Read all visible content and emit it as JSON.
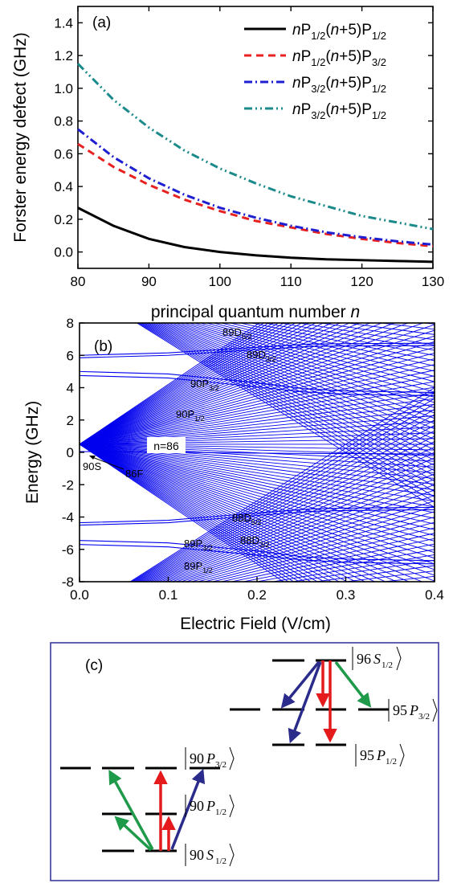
{
  "chart_data": [
    {
      "panel_label": "(a)",
      "type": "line",
      "xlabel_main": "principal quantum number ",
      "xlabel_italic": "n",
      "ylabel": "Forster energy defect (GHz)",
      "xlim": [
        80,
        130
      ],
      "ylim": [
        -0.1,
        1.5
      ],
      "xticks": [
        80,
        90,
        100,
        110,
        120,
        130
      ],
      "yticks": [
        0.0,
        0.2,
        0.4,
        0.6,
        0.8,
        1.0,
        1.2,
        1.4
      ],
      "ytick_labels": [
        "0.0",
        "0.2",
        "0.4",
        "0.6",
        "0.8",
        "1.0",
        "1.2",
        "1.4"
      ],
      "legend_position": "top-right",
      "grid": false,
      "series": [
        {
          "legend": {
            "a": "n",
            "b": "P",
            "c": "1/2",
            "d": "(",
            "e": "n",
            "f": "+5)P",
            "g": "1/2"
          },
          "color": "#000000",
          "dash": "solid",
          "x": [
            80,
            85,
            90,
            95,
            100,
            105,
            110,
            115,
            120,
            125,
            130
          ],
          "y": [
            0.27,
            0.16,
            0.08,
            0.03,
            0.0,
            -0.02,
            -0.035,
            -0.045,
            -0.05,
            -0.055,
            -0.06
          ]
        },
        {
          "legend": {
            "a": "n",
            "b": "P",
            "c": "1/2",
            "d": "(",
            "e": "n",
            "f": "+5)P",
            "g": "3/2"
          },
          "color": "#e8201f",
          "dash": "dash",
          "x": [
            80,
            85,
            90,
            95,
            100,
            105,
            110,
            115,
            120,
            125,
            130
          ],
          "y": [
            0.66,
            0.52,
            0.41,
            0.32,
            0.25,
            0.19,
            0.15,
            0.11,
            0.08,
            0.055,
            0.035
          ]
        },
        {
          "legend": {
            "a": "n",
            "b": "P",
            "c": "3/2",
            "d": "(",
            "e": "n",
            "f": "+5)P",
            "g": "1/2"
          },
          "color": "#1f1fd2",
          "dash": "dashdot",
          "x": [
            80,
            85,
            90,
            95,
            100,
            105,
            110,
            115,
            120,
            125,
            130
          ],
          "y": [
            0.75,
            0.58,
            0.45,
            0.35,
            0.27,
            0.21,
            0.16,
            0.12,
            0.09,
            0.065,
            0.045
          ]
        },
        {
          "legend": {
            "a": "n",
            "b": "P",
            "c": "3/2",
            "d": "(",
            "e": "n",
            "f": "+5)P",
            "g": "1/2"
          },
          "color": "#1a8a8a",
          "dash": "dashdotdot",
          "x": [
            80,
            85,
            90,
            95,
            100,
            105,
            110,
            115,
            120,
            125,
            130
          ],
          "y": [
            1.15,
            0.93,
            0.76,
            0.62,
            0.51,
            0.42,
            0.34,
            0.28,
            0.22,
            0.18,
            0.14
          ]
        }
      ]
    },
    {
      "panel_label": "(b)",
      "type": "line",
      "xlabel": "Electric Field (V/cm)",
      "ylabel": "Energy (GHz)",
      "xlim": [
        0.0,
        0.4
      ],
      "ylim": [
        -8,
        8
      ],
      "xticks": [
        0.0,
        0.1,
        0.2,
        0.3,
        0.4
      ],
      "xtick_labels": [
        "0.0",
        "0.1",
        "0.2",
        "0.3",
        "0.4"
      ],
      "yticks": [
        -8,
        -6,
        -4,
        -2,
        0,
        2,
        4,
        6,
        8
      ],
      "ytick_labels": [
        "-8",
        "-6",
        "-4",
        "-2",
        "0",
        "2",
        "4",
        "6",
        "8"
      ],
      "line_color": "#0000ee",
      "manifold_label": "n=86",
      "fans": [
        {
          "center_energy": 0.5,
          "slope_ghz_per_vcm": 37.0
        },
        {
          "center_energy": 10.2,
          "slope_ghz_per_vcm": 34.0
        },
        {
          "center_energy": -10.0,
          "slope_ghz_per_vcm": 35.0
        }
      ],
      "state_lines": [
        {
          "x": [
            0.0,
            0.1,
            0.2,
            0.26,
            0.3,
            0.4
          ],
          "y": [
            6.0,
            6.15,
            6.5,
            6.7,
            6.72,
            6.75
          ]
        },
        {
          "x": [
            0.0,
            0.1,
            0.2,
            0.26,
            0.3,
            0.4
          ],
          "y": [
            5.85,
            6.0,
            6.35,
            6.55,
            6.58,
            6.6
          ]
        },
        {
          "x": [
            0.0,
            0.1,
            0.2,
            0.25,
            0.3,
            0.4
          ],
          "y": [
            5.0,
            4.85,
            4.3,
            3.95,
            3.8,
            3.7
          ]
        },
        {
          "x": [
            0.0,
            0.1,
            0.2,
            0.25,
            0.3,
            0.4
          ],
          "y": [
            4.75,
            4.6,
            4.05,
            3.75,
            3.6,
            3.5
          ]
        },
        {
          "x": [
            0.0,
            0.1,
            0.2,
            0.26,
            0.3,
            0.4
          ],
          "y": [
            -4.35,
            -4.2,
            -3.75,
            -3.5,
            -3.45,
            -3.4
          ]
        },
        {
          "x": [
            0.0,
            0.1,
            0.2,
            0.26,
            0.3,
            0.4
          ],
          "y": [
            -4.5,
            -4.35,
            -3.9,
            -3.65,
            -3.6,
            -3.55
          ]
        },
        {
          "x": [
            0.0,
            0.1,
            0.2,
            0.25,
            0.3,
            0.4
          ],
          "y": [
            -5.45,
            -5.6,
            -6.1,
            -6.45,
            -6.6,
            -6.7
          ]
        },
        {
          "x": [
            0.0,
            0.1,
            0.2,
            0.25,
            0.3,
            0.4
          ],
          "y": [
            -5.7,
            -5.85,
            -6.35,
            -6.65,
            -6.8,
            -6.9
          ]
        },
        {
          "x": [
            0.0,
            0.1,
            0.2,
            0.4
          ],
          "y": [
            0.05,
            0.02,
            -0.05,
            -0.1
          ]
        }
      ],
      "labels": [
        {
          "main": "89D",
          "sub": "5/2"
        },
        {
          "main": "89D",
          "sub": "3/2"
        },
        {
          "main": "90P",
          "sub": "3/2"
        },
        {
          "main": "90P",
          "sub": "1/2"
        },
        {
          "main": "90S",
          "sub": ""
        },
        {
          "main": "86F",
          "sub": ""
        },
        {
          "main": "88D",
          "sub": "5/2"
        },
        {
          "main": "88D",
          "sub": "3/2"
        },
        {
          "main": "89P",
          "sub": "3/2"
        },
        {
          "main": "89P",
          "sub": "1/2"
        }
      ]
    },
    {
      "panel_label": "(c)",
      "type": "diagram",
      "border_color": "#3a3a9c",
      "arrow_colors": {
        "red": "#e41a1c",
        "green": "#1e9a4a",
        "blue": "#2b2b8c"
      },
      "kets": [
        {
          "n": "96",
          "L": "S",
          "J": "1/2"
        },
        {
          "n": "95",
          "L": "P",
          "J": "3/2"
        },
        {
          "n": "95",
          "L": "P",
          "J": "1/2"
        },
        {
          "n": "90",
          "L": "P",
          "J": "3/2"
        },
        {
          "n": "90",
          "L": "P",
          "J": "1/2"
        },
        {
          "n": "90",
          "L": "S",
          "J": "1/2"
        }
      ]
    }
  ]
}
